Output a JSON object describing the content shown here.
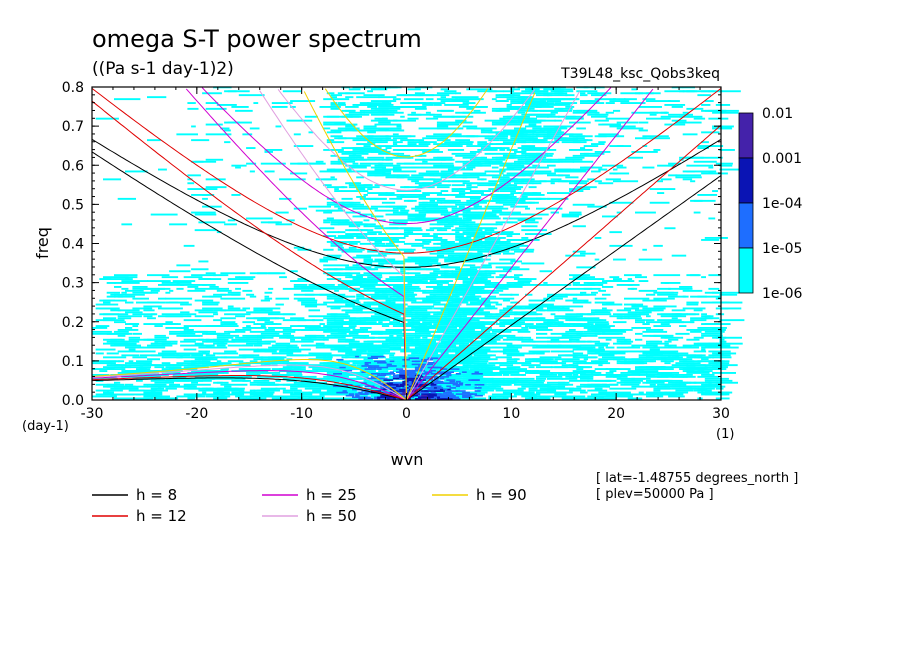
{
  "chart_data": {
    "type": "heatmap",
    "title": "omega S-T power spectrum",
    "subtitle": "((Pa s-1 day-1)2)",
    "run_label": "T39L48_ksc_Qobs3keq",
    "xlabel": "wvn",
    "ylabel": "freq",
    "x_unit": "(1)",
    "y_unit": "(day-1)",
    "xlim": [
      -30,
      30
    ],
    "ylim": [
      0,
      0.8
    ],
    "x_ticks": [
      "-30",
      "-20",
      "-10",
      "0",
      "10",
      "20",
      "30"
    ],
    "y_ticks": [
      "0.0",
      "0.1",
      "0.2",
      "0.3",
      "0.4",
      "0.5",
      "0.6",
      "0.7",
      "0.8"
    ],
    "colorbar": {
      "labels": [
        "0.01",
        "0.001",
        "1e-04",
        "1e-05",
        "1e-06"
      ],
      "colors": [
        "#4422aa",
        "#0a14b4",
        "#1e6eff",
        "#00ffff"
      ]
    },
    "dispersion_curves": [
      {
        "name": "h = 8",
        "color": "#000000"
      },
      {
        "name": "h = 12",
        "color": "#e00000"
      },
      {
        "name": "h = 25",
        "color": "#d000d0"
      },
      {
        "name": "h = 50",
        "color": "#e0a0e0"
      },
      {
        "name": "h = 90",
        "color": "#f0d000"
      }
    ],
    "annotations": [
      "[ lat=-1.48755 degrees_north ]",
      "[ plev=50000 Pa ]"
    ]
  }
}
